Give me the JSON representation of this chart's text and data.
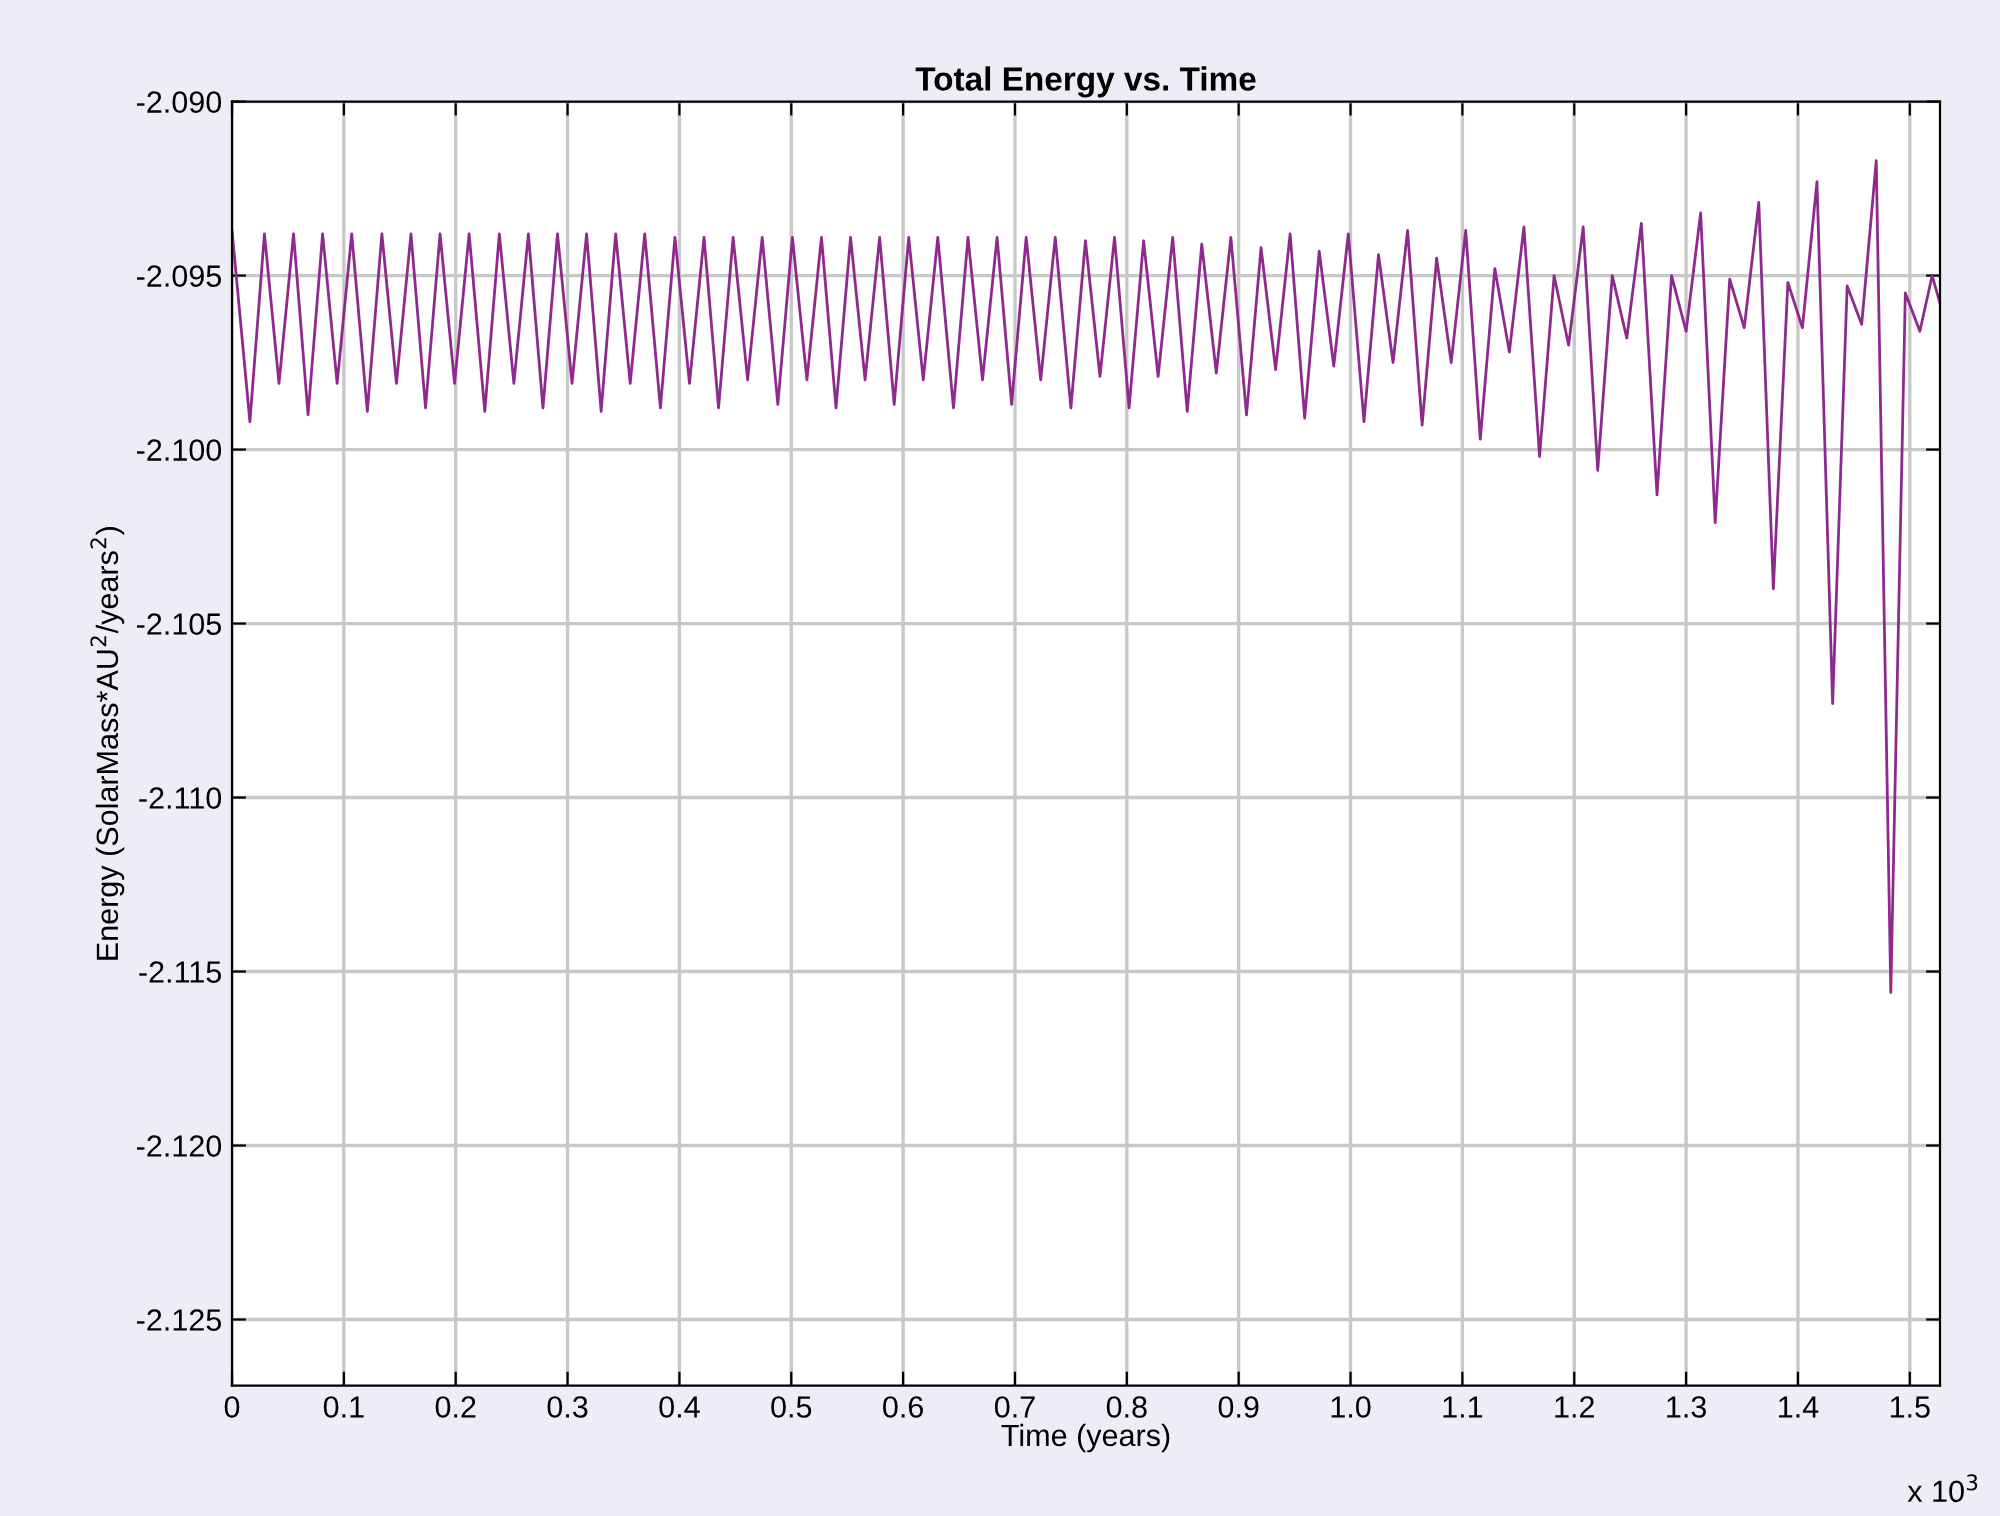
{
  "chart_data": {
    "type": "line",
    "title": "Total Energy vs. Time",
    "xlabel": "Time (years)",
    "ylabel": "Energy (SolarMass*AU$^{2}$/years$^{2}$)",
    "annotations": [
      "x 10$^{3}$"
    ],
    "xlim": [
      0,
      1.527
    ],
    "ylim": [
      -2.1269,
      -2.09
    ],
    "xticks": [
      0,
      0.1,
      0.2,
      0.3,
      0.4,
      0.5,
      0.6,
      0.7,
      0.8,
      0.9,
      {
        "value": 1,
        "label": "1.0"
      },
      1.1,
      1.2,
      1.3,
      1.4,
      1.5
    ],
    "yticks": [
      {
        "value": -2.09,
        "label": "-2.090"
      },
      {
        "value": -2.095,
        "label": "-2.095"
      },
      {
        "value": -2.1,
        "label": "-2.100"
      },
      {
        "value": -2.105,
        "label": "-2.105"
      },
      {
        "value": -2.11,
        "label": "-2.110"
      },
      {
        "value": -2.115,
        "label": "-2.115"
      },
      {
        "value": -2.12,
        "label": "-2.120"
      },
      {
        "value": -2.125,
        "label": "-2.125"
      }
    ],
    "grid": true,
    "marker": "none",
    "line_style": "solid",
    "series": [
      {
        "color": "#8e2a8e",
        "x": [
          0,
          0.016,
          0.029,
          0.042,
          0.055,
          0.068,
          0.081,
          0.094,
          0.107,
          0.121,
          0.134,
          0.147,
          0.16,
          0.173,
          0.186,
          0.199,
          0.212,
          0.226,
          0.239,
          0.252,
          0.265,
          0.278,
          0.291,
          0.304,
          0.317,
          0.33,
          0.343,
          0.356,
          0.369,
          0.383,
          0.396,
          0.409,
          0.422,
          0.435,
          0.448,
          0.461,
          0.474,
          0.488,
          0.501,
          0.514,
          0.527,
          0.54,
          0.553,
          0.566,
          0.579,
          0.592,
          0.605,
          0.618,
          0.631,
          0.645,
          0.658,
          0.671,
          0.684,
          0.697,
          0.71,
          0.723,
          0.736,
          0.75,
          0.763,
          0.776,
          0.789,
          0.802,
          0.815,
          0.828,
          0.841,
          0.854,
          0.867,
          0.88,
          0.893,
          0.907,
          0.92,
          0.933,
          0.946,
          0.959,
          0.972,
          0.985,
          0.998,
          1.012,
          1.025,
          1.038,
          1.051,
          1.064,
          1.077,
          1.09,
          1.103,
          1.116,
          1.129,
          1.142,
          1.155,
          1.169,
          1.182,
          1.195,
          1.208,
          1.221,
          1.234,
          1.247,
          1.26,
          1.274,
          1.287,
          1.3,
          1.313,
          1.326,
          1.339,
          1.352,
          1.365,
          1.378,
          1.391,
          1.404,
          1.417,
          1.431,
          1.444,
          1.457,
          1.47,
          1.483,
          1.496,
          1.509,
          1.52,
          1.527
        ],
        "values": [
          -2.0937,
          -2.0992,
          -2.0938,
          -2.0981,
          -2.0938,
          -2.099,
          -2.0938,
          -2.0981,
          -2.0938,
          -2.0989,
          -2.0938,
          -2.0981,
          -2.0938,
          -2.0988,
          -2.0938,
          -2.0981,
          -2.0938,
          -2.0989,
          -2.0938,
          -2.0981,
          -2.0938,
          -2.0988,
          -2.0938,
          -2.0981,
          -2.0938,
          -2.0989,
          -2.0938,
          -2.0981,
          -2.0938,
          -2.0988,
          -2.0939,
          -2.0981,
          -2.0939,
          -2.0988,
          -2.0939,
          -2.098,
          -2.0939,
          -2.0987,
          -2.0939,
          -2.098,
          -2.0939,
          -2.0988,
          -2.0939,
          -2.098,
          -2.0939,
          -2.0987,
          -2.0939,
          -2.098,
          -2.0939,
          -2.0988,
          -2.0939,
          -2.098,
          -2.0939,
          -2.0987,
          -2.0939,
          -2.098,
          -2.0939,
          -2.0988,
          -2.094,
          -2.0979,
          -2.0939,
          -2.0988,
          -2.094,
          -2.0979,
          -2.0939,
          -2.0989,
          -2.0941,
          -2.0978,
          -2.0939,
          -2.099,
          -2.0942,
          -2.0977,
          -2.0938,
          -2.0991,
          -2.0943,
          -2.0976,
          -2.0938,
          -2.0992,
          -2.0944,
          -2.0975,
          -2.0937,
          -2.0993,
          -2.0945,
          -2.0975,
          -2.0937,
          -2.0997,
          -2.0948,
          -2.0972,
          -2.0936,
          -2.1002,
          -2.095,
          -2.097,
          -2.0936,
          -2.1006,
          -2.095,
          -2.0968,
          -2.0935,
          -2.1013,
          -2.095,
          -2.0966,
          -2.0932,
          -2.1021,
          -2.0951,
          -2.0965,
          -2.0929,
          -2.104,
          -2.0952,
          -2.0965,
          -2.0923,
          -2.1073,
          -2.0953,
          -2.0964,
          -2.0917,
          -2.1156,
          -2.0955,
          -2.0966,
          -2.095,
          -2.0958
        ]
      }
    ]
  }
}
